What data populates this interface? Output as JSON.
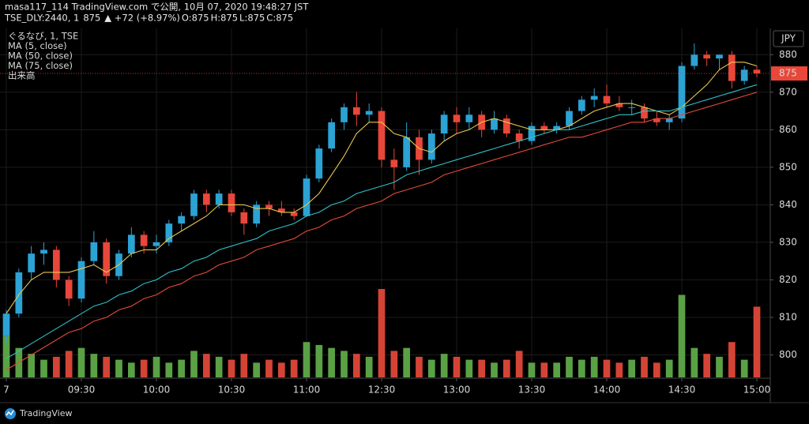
{
  "header": {
    "line1": "masa117_114 TradingView.com で公開, 10月 07, 2020 19:48:27 JST",
    "symbol": "TSE_DLY:2440, 1",
    "price": "875",
    "change": "▲ +72 (+8.97%)",
    "ohlc": [
      {
        "label": "O:",
        "value": "875"
      },
      {
        "label": "H:",
        "value": "875"
      },
      {
        "label": "L:",
        "value": "875"
      },
      {
        "label": "C:",
        "value": "875"
      }
    ]
  },
  "footer": {
    "brand": "TradingView"
  },
  "chart_data": {
    "type": "candlestick",
    "name": "ぐるなび, 1, TSE",
    "currency": "JPY",
    "last_price": 875,
    "up_color": "#2ba3d4",
    "down_color": "#e8473a",
    "volume_up_color": "#5aa145",
    "volume_down_color": "#d44436",
    "x": [
      "09:00",
      "09:05",
      "09:10",
      "09:15",
      "09:20",
      "09:25",
      "09:30",
      "09:35",
      "09:40",
      "09:45",
      "09:50",
      "09:55",
      "10:00",
      "10:05",
      "10:10",
      "10:15",
      "10:20",
      "10:25",
      "10:30",
      "10:35",
      "10:40",
      "10:45",
      "10:50",
      "10:55",
      "11:00",
      "11:05",
      "11:10",
      "11:15",
      "11:20",
      "11:25",
      "12:30",
      "12:35",
      "12:40",
      "12:45",
      "12:50",
      "12:55",
      "13:00",
      "13:05",
      "13:10",
      "13:15",
      "13:20",
      "13:25",
      "13:30",
      "13:35",
      "13:40",
      "13:45",
      "13:50",
      "13:55",
      "14:00",
      "14:05",
      "14:10",
      "14:15",
      "14:20",
      "14:25",
      "14:30",
      "14:35",
      "14:40",
      "14:45",
      "14:50",
      "14:55",
      "15:00"
    ],
    "open": [
      805,
      811,
      822,
      827,
      828,
      820,
      815,
      825,
      830,
      821,
      827,
      832,
      829,
      830,
      835,
      837,
      843,
      840,
      843,
      838,
      835,
      840,
      839,
      838,
      837,
      847,
      855,
      862,
      866,
      864,
      865,
      852,
      850,
      858,
      852,
      859,
      864,
      862,
      864,
      860,
      863,
      859,
      857,
      861,
      860,
      861,
      865,
      868,
      869,
      867,
      866,
      866,
      863,
      862,
      863,
      877,
      880,
      879,
      880,
      873,
      876
    ],
    "high": [
      812,
      823,
      829,
      830,
      829,
      821,
      826,
      833,
      831,
      828,
      834,
      833,
      832,
      836,
      838,
      844,
      844,
      844,
      844,
      839,
      841,
      841,
      841,
      839,
      848,
      856,
      863,
      867,
      870,
      867,
      866,
      855,
      862,
      860,
      860,
      865,
      866,
      866,
      865,
      865,
      864,
      860,
      862,
      862,
      862,
      866,
      869,
      871,
      872,
      869,
      868,
      867,
      865,
      864,
      878,
      883,
      881,
      880,
      881,
      877,
      877
    ],
    "low": [
      803,
      810,
      820,
      824,
      818,
      813,
      814,
      824,
      819,
      820,
      826,
      827,
      827,
      829,
      833,
      836,
      838,
      839,
      837,
      832,
      834,
      837,
      837,
      836,
      837,
      846,
      854,
      860,
      861,
      862,
      850,
      844,
      849,
      848,
      851,
      857,
      859,
      860,
      858,
      859,
      858,
      855,
      856,
      859,
      859,
      860,
      864,
      866,
      866,
      865,
      864,
      862,
      861,
      860,
      862,
      876,
      877,
      876,
      871,
      872,
      874
    ],
    "close": [
      811,
      822,
      827,
      828,
      820,
      815,
      825,
      830,
      821,
      827,
      832,
      829,
      830,
      835,
      837,
      843,
      840,
      843,
      838,
      835,
      840,
      839,
      838,
      837,
      847,
      855,
      862,
      866,
      864,
      865,
      852,
      850,
      858,
      852,
      859,
      864,
      862,
      864,
      860,
      863,
      859,
      857,
      861,
      860,
      861,
      865,
      868,
      869,
      867,
      866,
      866,
      863,
      862,
      863,
      877,
      880,
      879,
      880,
      873,
      876,
      875
    ],
    "volume": {
      "name": "出来高",
      "values": [
        14,
        10,
        8,
        6,
        7,
        9,
        10,
        8,
        7,
        6,
        5,
        6,
        7,
        5,
        6,
        9,
        8,
        7,
        6,
        8,
        5,
        6,
        5,
        6,
        12,
        11,
        10,
        9,
        8,
        7,
        30,
        9,
        10,
        7,
        6,
        8,
        7,
        6,
        6,
        5,
        6,
        9,
        5,
        5,
        5,
        7,
        6,
        7,
        6,
        5,
        6,
        7,
        5,
        6,
        28,
        10,
        8,
        7,
        12,
        6,
        24
      ]
    },
    "series": [
      {
        "name": "MA (5, close)",
        "color": "#e9c64b",
        "values": [
          811,
          816,
          820,
          822,
          822,
          822,
          823,
          824,
          822,
          824,
          827,
          828,
          828,
          831,
          833,
          835,
          837,
          840,
          840,
          840,
          839,
          839,
          838,
          838,
          840,
          843,
          848,
          853,
          859,
          862,
          862,
          859,
          858,
          855,
          854,
          857,
          859,
          860,
          862,
          863,
          862,
          861,
          860,
          860,
          860,
          861,
          863,
          865,
          866,
          867,
          867,
          866,
          865,
          864,
          866,
          869,
          872,
          876,
          878,
          878,
          877
        ]
      },
      {
        "name": "MA (50, close)",
        "color": "#2fc2c9",
        "values": [
          799,
          801,
          803,
          805,
          807,
          809,
          811,
          813,
          814,
          816,
          817,
          819,
          820,
          822,
          823,
          825,
          826,
          828,
          829,
          830,
          831,
          833,
          834,
          835,
          837,
          838,
          840,
          841,
          843,
          844,
          845,
          846,
          848,
          849,
          850,
          851,
          852,
          853,
          854,
          855,
          856,
          857,
          858,
          859,
          860,
          860,
          861,
          862,
          863,
          864,
          864,
          865,
          865,
          865,
          866,
          867,
          868,
          869,
          870,
          871,
          872
        ]
      },
      {
        "name": "MA (75, close)",
        "color": "#e44a3b",
        "values": [
          796,
          798,
          800,
          802,
          804,
          806,
          807,
          809,
          810,
          812,
          813,
          815,
          816,
          818,
          819,
          821,
          822,
          824,
          825,
          826,
          828,
          829,
          830,
          831,
          833,
          834,
          836,
          837,
          839,
          840,
          841,
          843,
          844,
          845,
          846,
          848,
          849,
          850,
          851,
          852,
          853,
          854,
          855,
          856,
          857,
          858,
          858,
          859,
          860,
          861,
          862,
          862,
          863,
          863,
          864,
          865,
          866,
          867,
          868,
          869,
          870
        ]
      }
    ],
    "ylim": [
      794,
      887
    ],
    "yticks": [
      800,
      810,
      820,
      830,
      840,
      850,
      860,
      870,
      880
    ],
    "xticks": [
      {
        "value": "09:00",
        "label": "7"
      },
      "09:30",
      "10:00",
      "10:30",
      "11:00",
      "12:30",
      "13:00",
      "13:30",
      "14:00",
      "14:30",
      "15:00"
    ],
    "grid": true
  }
}
